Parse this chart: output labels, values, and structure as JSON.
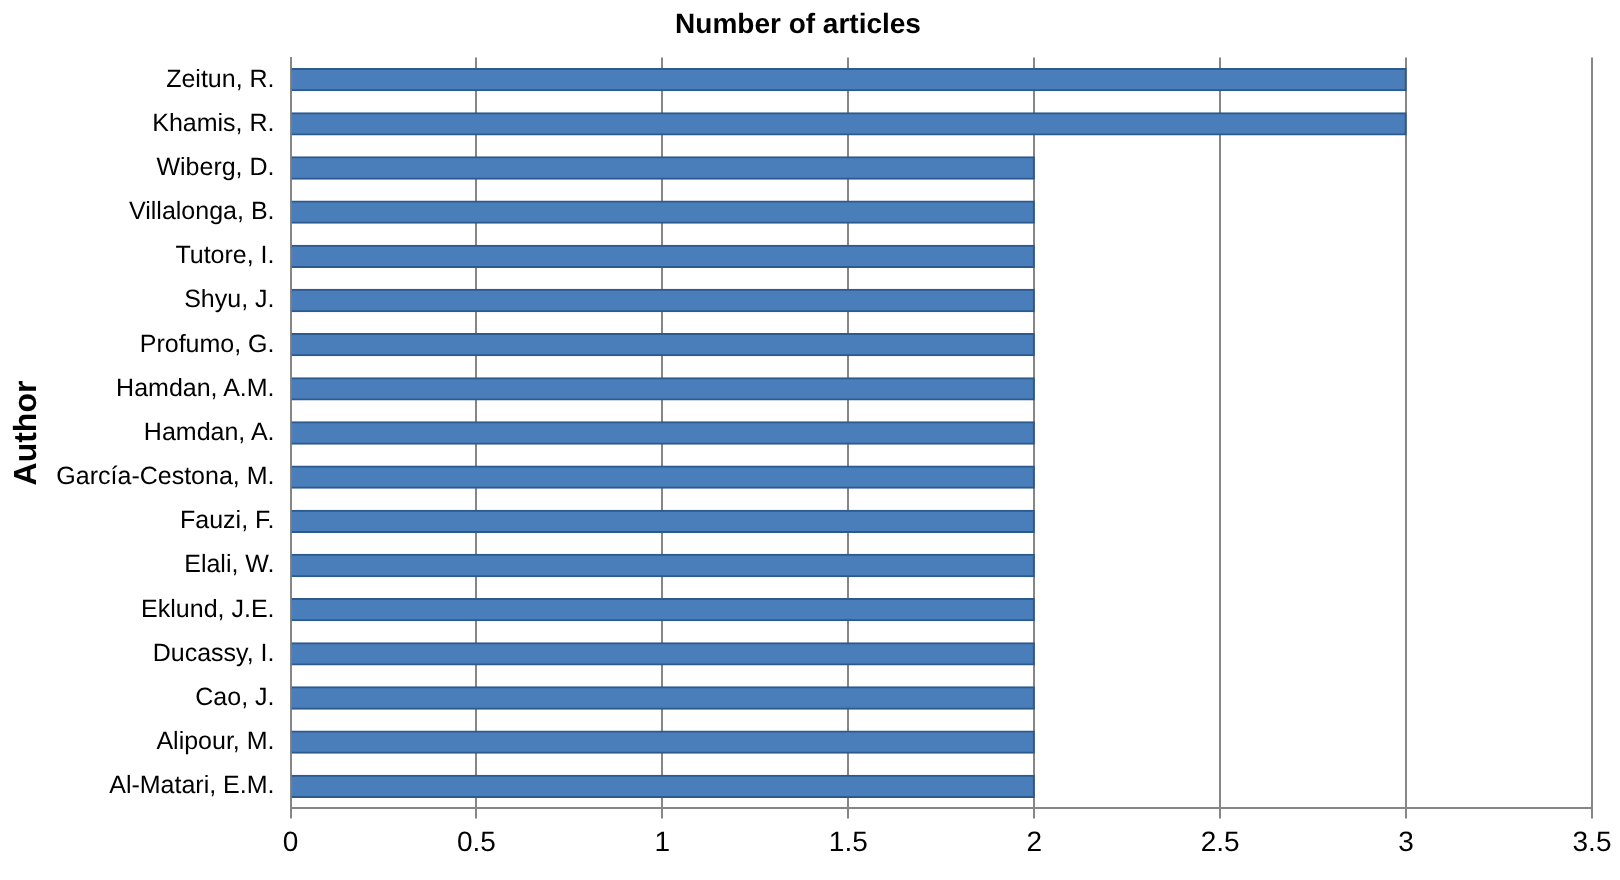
{
  "chart_data": {
    "type": "bar",
    "orientation": "horizontal",
    "title": "Number of articles",
    "ylabel": "Author",
    "categories": [
      "Zeitun, R.",
      "Khamis, R.",
      "Wiberg, D.",
      "Villalonga, B.",
      "Tutore, I.",
      "Shyu, J.",
      "Profumo, G.",
      "Hamdan, A.M.",
      "Hamdan, A.",
      "García-Cestona, M.",
      "Fauzi, F.",
      "Elali, W.",
      "Eklund, J.E.",
      "Ducassy, I.",
      "Cao, J.",
      "Alipour, M.",
      "Al-Matari, E.M."
    ],
    "values": [
      3,
      3,
      2,
      2,
      2,
      2,
      2,
      2,
      2,
      2,
      2,
      2,
      2,
      2,
      2,
      2,
      2
    ],
    "color": "#4a7ebb",
    "xlim": [
      0,
      3.5
    ],
    "xticks": [
      0,
      0.5,
      1,
      1.5,
      2,
      2.5,
      3,
      3.5
    ],
    "grid": "x",
    "legend": false
  }
}
